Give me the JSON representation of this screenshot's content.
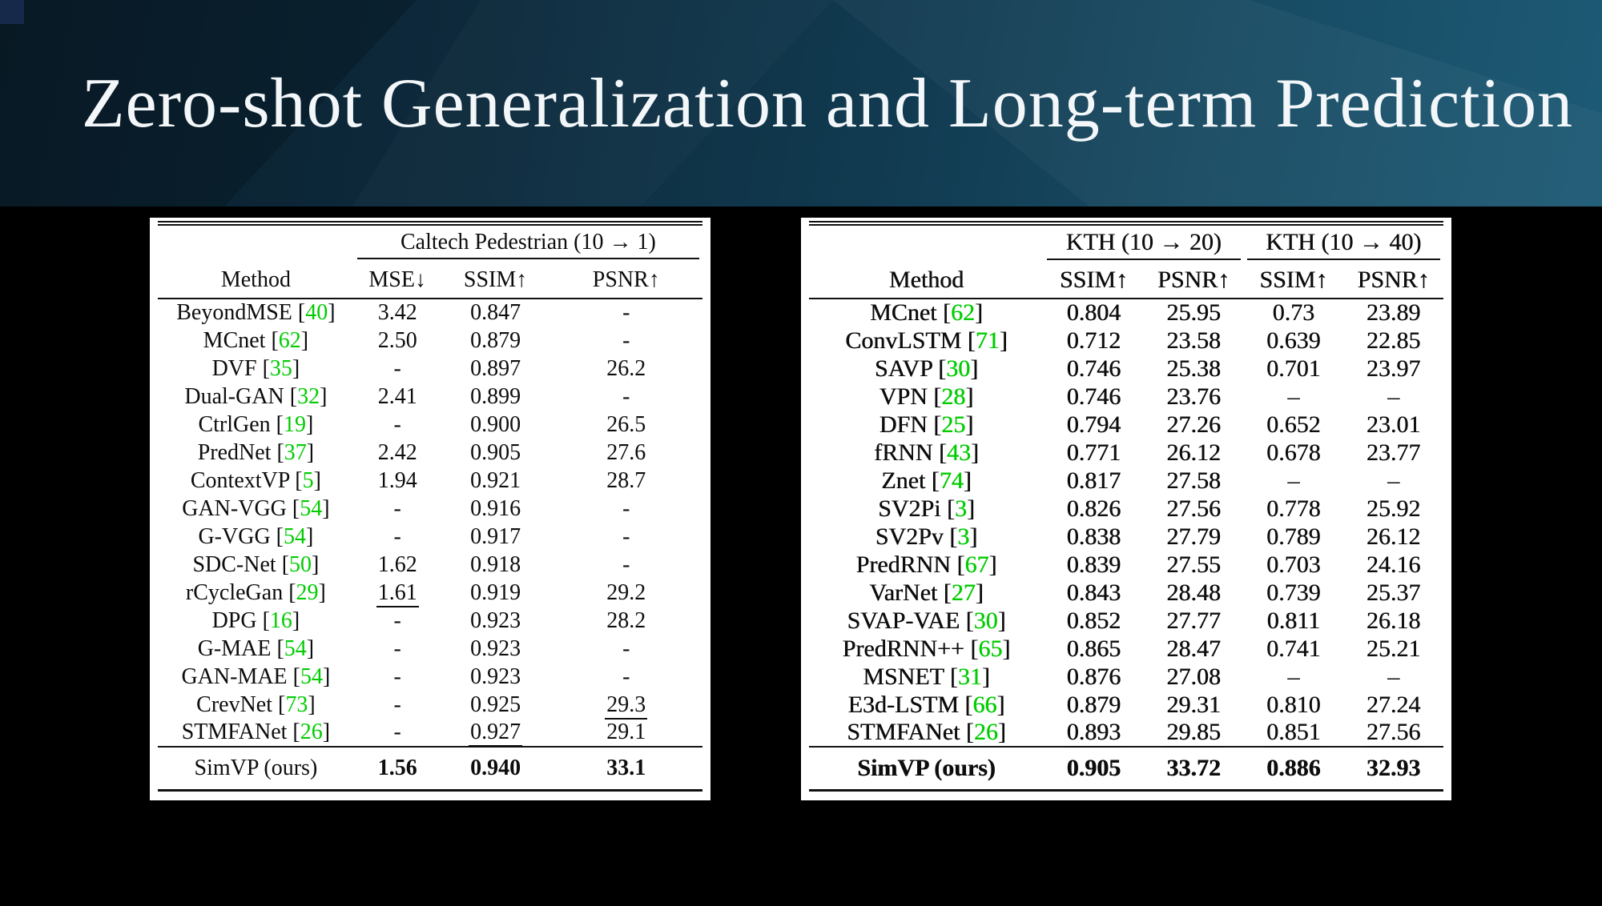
{
  "title": "Zero-shot Generalization and Long-term Prediction",
  "colors": {
    "reference_green": "#00cc00",
    "band_dark": "#0a1f2d",
    "band_light": "#1d5a75",
    "table_background": "#ffffff",
    "table_text": "#0d0d0d"
  },
  "tables": [
    {
      "id": "caltech",
      "groups": [
        {
          "label": "Caltech Pedestrian (10 → 1)",
          "span": 3
        }
      ],
      "columns": [
        "Method",
        "MSE↓",
        "SSIM↑",
        "PSNR↑"
      ],
      "rows": [
        {
          "method": "BeyondMSE",
          "ref": "40",
          "cells": [
            "3.42",
            "0.847",
            "-"
          ]
        },
        {
          "method": "MCnet",
          "ref": "62",
          "cells": [
            "2.50",
            "0.879",
            "-"
          ]
        },
        {
          "method": "DVF",
          "ref": "35",
          "cells": [
            "-",
            "0.897",
            "26.2"
          ]
        },
        {
          "method": "Dual-GAN",
          "ref": "32",
          "cells": [
            "2.41",
            "0.899",
            "-"
          ]
        },
        {
          "method": "CtrlGen",
          "ref": "19",
          "cells": [
            "-",
            "0.900",
            "26.5"
          ]
        },
        {
          "method": "PredNet",
          "ref": "37",
          "cells": [
            "2.42",
            "0.905",
            "27.6"
          ]
        },
        {
          "method": "ContextVP",
          "ref": "5",
          "cells": [
            "1.94",
            "0.921",
            "28.7"
          ]
        },
        {
          "method": "GAN-VGG",
          "ref": "54",
          "cells": [
            "-",
            "0.916",
            "-"
          ]
        },
        {
          "method": "G-VGG",
          "ref": "54",
          "cells": [
            "-",
            "0.917",
            "-"
          ]
        },
        {
          "method": "SDC-Net",
          "ref": "50",
          "cells": [
            "1.62",
            "0.918",
            "-"
          ]
        },
        {
          "method": "rCycleGan",
          "ref": "29",
          "cells": [
            "1.61",
            "0.919",
            "29.2"
          ],
          "underline": [
            0
          ]
        },
        {
          "method": "DPG",
          "ref": "16",
          "cells": [
            "-",
            "0.923",
            "28.2"
          ]
        },
        {
          "method": "G-MAE",
          "ref": "54",
          "cells": [
            "-",
            "0.923",
            "-"
          ]
        },
        {
          "method": "GAN-MAE",
          "ref": "54",
          "cells": [
            "-",
            "0.923",
            "-"
          ]
        },
        {
          "method": "CrevNet",
          "ref": "73",
          "cells": [
            "-",
            "0.925",
            "29.3"
          ],
          "underline": [
            2
          ]
        },
        {
          "method": "STMFANet",
          "ref": "26",
          "cells": [
            "-",
            "0.927",
            "29.1"
          ],
          "underline": [
            1
          ]
        }
      ],
      "final_row": {
        "method": "SimVP (ours)",
        "cells": [
          "1.56",
          "0.940",
          "33.1"
        ],
        "bold_cells": true,
        "bold_method": false
      }
    },
    {
      "id": "kth",
      "groups": [
        {
          "label": "KTH (10 → 20)",
          "span": 2
        },
        {
          "label": "KTH (10 → 40)",
          "span": 2
        }
      ],
      "columns": [
        "Method",
        "SSIM↑",
        "PSNR↑",
        "SSIM↑",
        "PSNR↑"
      ],
      "rows": [
        {
          "method": "MCnet",
          "ref": "62",
          "cells": [
            "0.804",
            "25.95",
            "0.73",
            "23.89"
          ]
        },
        {
          "method": "ConvLSTM",
          "ref": "71",
          "cells": [
            "0.712",
            "23.58",
            "0.639",
            "22.85"
          ]
        },
        {
          "method": "SAVP",
          "ref": "30",
          "cells": [
            "0.746",
            "25.38",
            "0.701",
            "23.97"
          ]
        },
        {
          "method": "VPN",
          "ref": "28",
          "cells": [
            "0.746",
            "23.76",
            "–",
            "–"
          ]
        },
        {
          "method": "DFN",
          "ref": "25",
          "cells": [
            "0.794",
            "27.26",
            "0.652",
            "23.01"
          ]
        },
        {
          "method": "fRNN",
          "ref": "43",
          "cells": [
            "0.771",
            "26.12",
            "0.678",
            "23.77"
          ]
        },
        {
          "method": "Znet",
          "ref": "74",
          "cells": [
            "0.817",
            "27.58",
            "–",
            "–"
          ]
        },
        {
          "method": "SV2Pi",
          "ref": "3",
          "cells": [
            "0.826",
            "27.56",
            "0.778",
            "25.92"
          ]
        },
        {
          "method": "SV2Pv",
          "ref": "3",
          "cells": [
            "0.838",
            "27.79",
            "0.789",
            "26.12"
          ]
        },
        {
          "method": "PredRNN",
          "ref": "67",
          "cells": [
            "0.839",
            "27.55",
            "0.703",
            "24.16"
          ]
        },
        {
          "method": "VarNet",
          "ref": "27",
          "cells": [
            "0.843",
            "28.48",
            "0.739",
            "25.37"
          ]
        },
        {
          "method": "SVAP-VAE",
          "ref": "30",
          "cells": [
            "0.852",
            "27.77",
            "0.811",
            "26.18"
          ]
        },
        {
          "method": "PredRNN++",
          "ref": "65",
          "cells": [
            "0.865",
            "28.47",
            "0.741",
            "25.21"
          ]
        },
        {
          "method": "MSNET",
          "ref": "31",
          "cells": [
            "0.876",
            "27.08",
            "–",
            "–"
          ]
        },
        {
          "method": "E3d-LSTM",
          "ref": "66",
          "cells": [
            "0.879",
            "29.31",
            "0.810",
            "27.24"
          ]
        },
        {
          "method": "STMFANet",
          "ref": "26",
          "cells": [
            "0.893",
            "29.85",
            "0.851",
            "27.56"
          ],
          "underline": [
            0,
            1,
            2,
            3
          ]
        }
      ],
      "final_row": {
        "method": "SimVP (ours)",
        "cells": [
          "0.905",
          "33.72",
          "0.886",
          "32.93"
        ],
        "bold_cells": true,
        "bold_method": true
      }
    }
  ]
}
